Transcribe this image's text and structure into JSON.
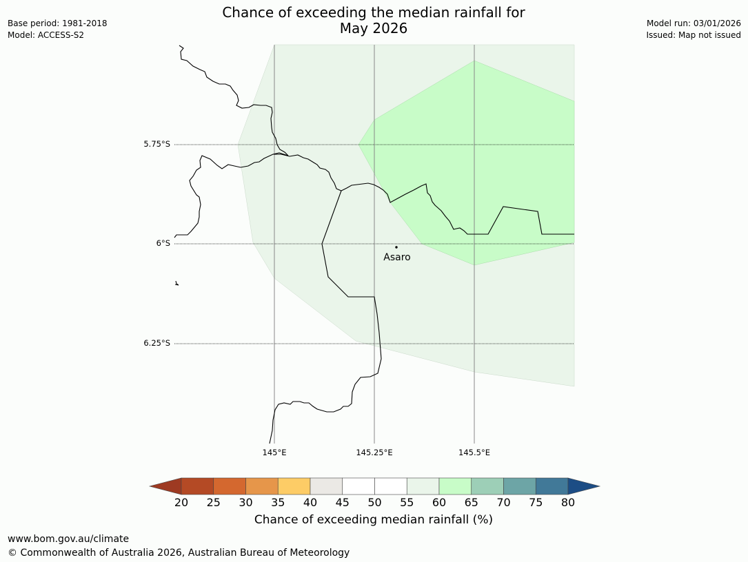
{
  "title_line1": "Chance of exceeding the median rainfall for",
  "title_line2": "May 2026",
  "meta_left": {
    "base_period": "Base period: 1981-2018",
    "model": "Model: ACCESS-S2"
  },
  "meta_right": {
    "model_run": "Model run: 03/01/2026",
    "issued": "Issued: Map not issued"
  },
  "map": {
    "lat_labels": [
      "5.75°S",
      "6°S",
      "6.25°S"
    ],
    "lon_labels": [
      "145°E",
      "145.25°E",
      "145.5°E"
    ],
    "place": "Asaro",
    "colors": {
      "zone_55_60": "#eaf5ea",
      "zone_60_65": "#c8fcc8",
      "coast": "#000000",
      "gridline": "#888888"
    }
  },
  "colorbar": {
    "ticks": [
      "20",
      "25",
      "30",
      "35",
      "40",
      "45",
      "50",
      "55",
      "60",
      "65",
      "70",
      "75",
      "80"
    ],
    "colors": [
      "#9e3a22",
      "#b44a25",
      "#d4682f",
      "#e6964a",
      "#fdcc66",
      "#ebe9e5",
      "#ffffff",
      "#ffffff",
      "#eaf5ea",
      "#c8fcc8",
      "#9dcfb7",
      "#6da5a6",
      "#417998",
      "#1c4d85"
    ],
    "label": "Chance of exceeding median rainfall (%)"
  },
  "footer": {
    "url": "www.bom.gov.au/climate",
    "copyright": "© Commonwealth of Australia 2026, Australian Bureau of Meteorology"
  }
}
